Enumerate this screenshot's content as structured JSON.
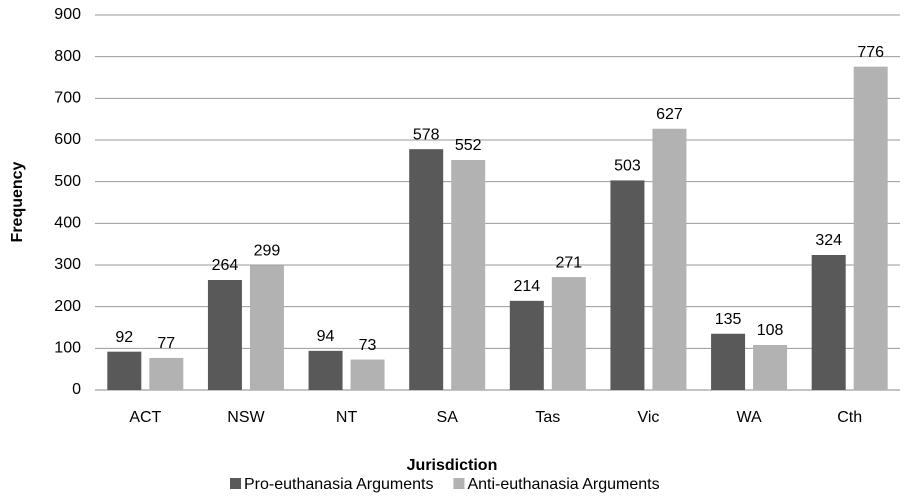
{
  "chart_data": {
    "type": "bar",
    "categories": [
      "ACT",
      "NSW",
      "NT",
      "SA",
      "Tas",
      "Vic",
      "WA",
      "Cth"
    ],
    "series": [
      {
        "name": "Pro-euthanasia Arguments",
        "color": "#595959",
        "values": [
          92,
          264,
          94,
          578,
          214,
          503,
          135,
          324
        ]
      },
      {
        "name": "Anti-euthanasia Arguments",
        "color": "#b2b2b2",
        "values": [
          77,
          299,
          73,
          552,
          271,
          627,
          108,
          776
        ]
      }
    ],
    "x_label": "Jurisdiction",
    "y_label": "Frequency",
    "ylim": [
      0,
      900
    ],
    "yticks": [
      0,
      100,
      200,
      300,
      400,
      500,
      600,
      700,
      800,
      900
    ],
    "grid": true,
    "legend": "bottom"
  }
}
